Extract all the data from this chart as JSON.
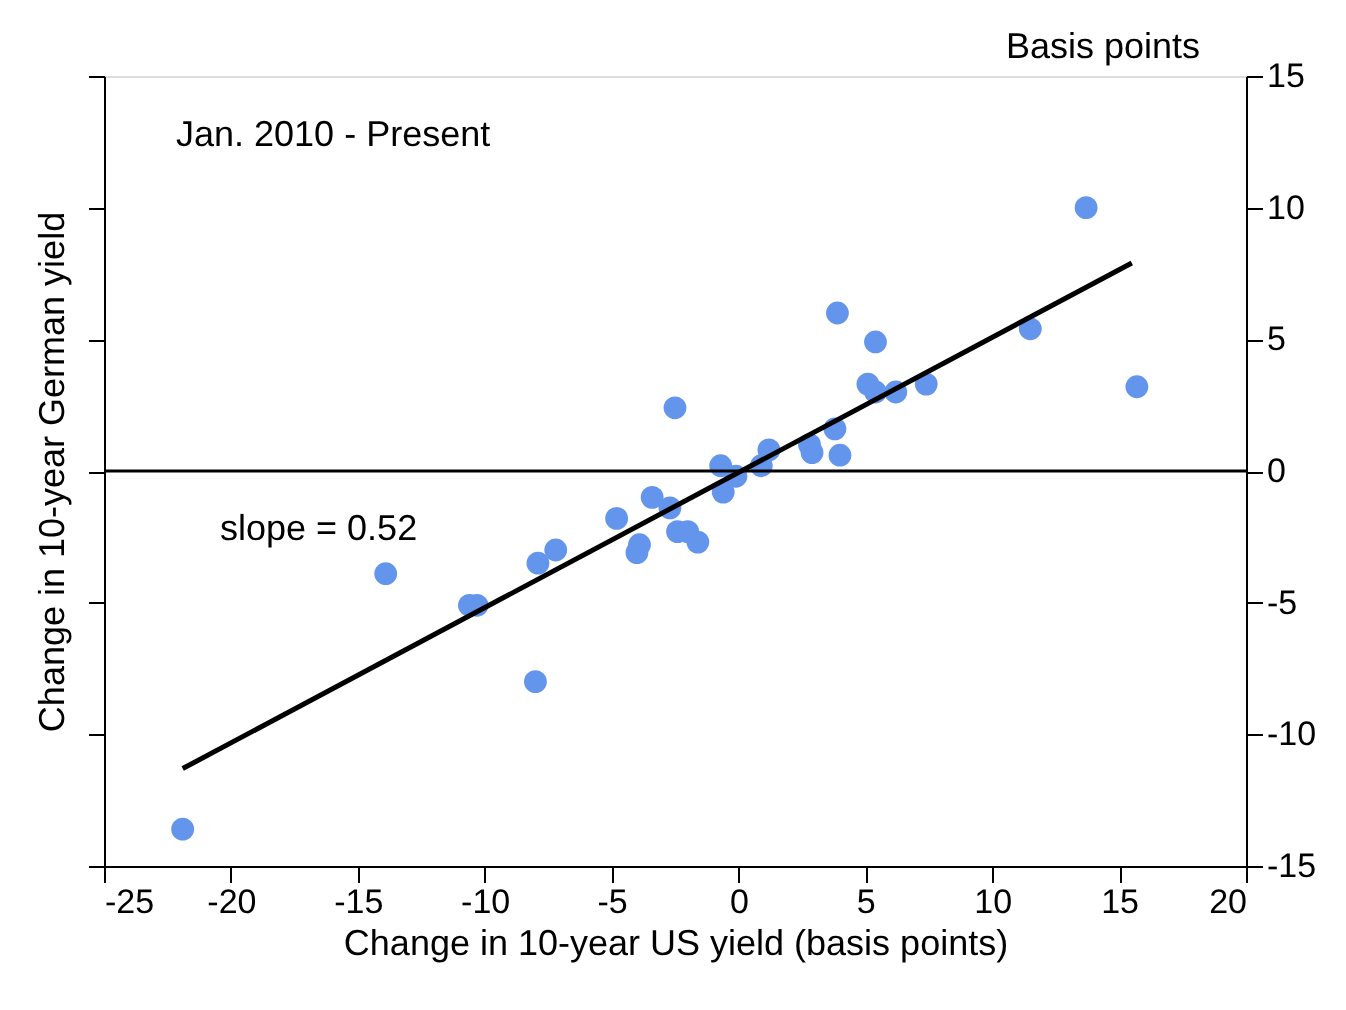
{
  "chart_data": {
    "type": "scatter",
    "xlabel": "Change in 10-year US yield (basis points)",
    "ylabel": "Change in 10-year German yield",
    "annotations": [
      "Basis points",
      "Jan. 2010 - Present",
      "slope = 0.52"
    ],
    "xlim": [
      -25,
      20
    ],
    "xticks": [
      -25,
      -20,
      -15,
      -10,
      -5,
      0,
      5,
      10,
      15,
      20
    ],
    "ylim": [
      -15,
      15
    ],
    "yticks": [
      -15,
      -10,
      -5,
      0,
      5,
      10,
      15
    ],
    "grid": false,
    "marker": "circle",
    "ref_lines": [
      {
        "axis": "y",
        "value": 0,
        "color": "#000000"
      }
    ],
    "series": [
      {
        "color": "#6495ed",
        "x": [
          -21.9,
          -13.9,
          -10.6,
          -10.3,
          -8.0,
          -7.9,
          -7.2,
          -4.8,
          -4.0,
          -3.9,
          -3.4,
          -2.5,
          -2.7,
          -2.4,
          -2.0,
          -1.6,
          -0.7,
          -0.6,
          -0.1,
          0.9,
          1.2,
          2.8,
          2.9,
          3.8,
          4.0,
          3.9,
          5.1,
          5.4,
          5.4,
          6.2,
          7.4,
          11.5,
          13.7,
          15.7
        ],
        "values": [
          -13.6,
          -3.9,
          -5.1,
          -5.1,
          -8.0,
          -3.5,
          -3.0,
          -1.8,
          -3.1,
          -2.8,
          -1.0,
          2.4,
          -1.4,
          -2.3,
          -2.3,
          -2.7,
          0.2,
          -0.8,
          -0.2,
          0.2,
          0.8,
          1.0,
          0.7,
          1.6,
          0.6,
          6.0,
          3.3,
          4.9,
          3.0,
          3.0,
          3.3,
          5.4,
          10.0,
          3.2
        ]
      },
      {
        "type": "line",
        "marker": "none",
        "color": "#000000",
        "x": [
          -21.9,
          15.5
        ],
        "values": [
          -11.3,
          7.9
        ]
      }
    ]
  }
}
